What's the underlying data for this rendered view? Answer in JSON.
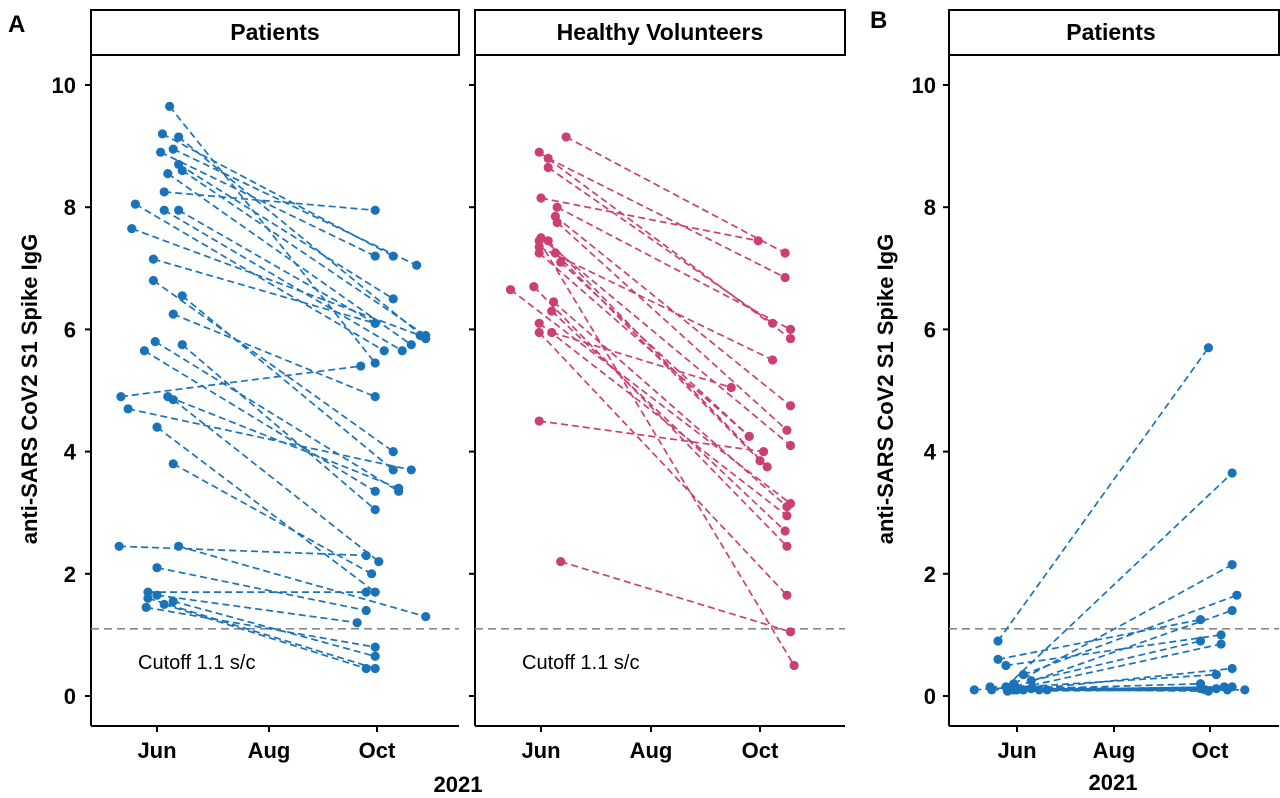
{
  "panels": {
    "A": "A",
    "B": "B"
  },
  "x_axis_title": "2021",
  "y_axis_title": "anti-SARS CoV2 S1 Spike IgG",
  "y_ticks": [
    "0",
    "2",
    "4",
    "6",
    "8",
    "10"
  ],
  "x_ticks": [
    "Jun",
    "Aug",
    "Oct"
  ],
  "cutoff_label": "Cutoff 1.1 s/c",
  "colors": {
    "patients": "#1a73b8",
    "healthy": "#cc3f73",
    "cutoff_line": "#888888"
  },
  "chart_data": [
    {
      "type": "line",
      "panel": "A",
      "facet": "Patients",
      "xlabel": "2021",
      "ylabel": "anti-SARS CoV2 S1 Spike IgG",
      "ylim": [
        0,
        10
      ],
      "x_ticks": [
        "Jun",
        "Aug",
        "Oct"
      ],
      "cutoff": 1.1,
      "cutoff_label": "Cutoff 1.1 s/c",
      "line_style": "dashed",
      "pairs": [
        {
          "x1": "2021-06-08",
          "y1": 9.65,
          "x2": "2021-09-30",
          "y2": 5.45
        },
        {
          "x1": "2021-06-04",
          "y1": 9.2,
          "x2": "2021-10-10",
          "y2": 7.2
        },
        {
          "x1": "2021-06-03",
          "y1": 8.9,
          "x2": "2021-09-30",
          "y2": 7.2
        },
        {
          "x1": "2021-06-13",
          "y1": 9.15,
          "x2": "2021-10-28",
          "y2": 5.85
        },
        {
          "x1": "2021-06-10",
          "y1": 8.95,
          "x2": "2021-10-23",
          "y2": 7.05
        },
        {
          "x1": "2021-06-05",
          "y1": 8.25,
          "x2": "2021-09-30",
          "y2": 7.95
        },
        {
          "x1": "2021-06-07",
          "y1": 8.55,
          "x2": "2021-10-20",
          "y2": 5.75
        },
        {
          "x1": "2021-06-13",
          "y1": 8.7,
          "x2": "2021-10-10",
          "y2": 6.5
        },
        {
          "x1": "2021-06-15",
          "y1": 8.6,
          "x2": "2021-10-28",
          "y2": 5.9
        },
        {
          "x1": "2021-06-05",
          "y1": 7.95,
          "x2": "2021-10-15",
          "y2": 5.65
        },
        {
          "x1": "2021-05-20",
          "y1": 8.05,
          "x2": "2021-10-05",
          "y2": 5.65
        },
        {
          "x1": "2021-05-18",
          "y1": 7.65,
          "x2": "2021-10-25",
          "y2": 5.9
        },
        {
          "x1": "2021-06-13",
          "y1": 7.95,
          "x2": "2021-09-30",
          "y2": 6.1
        },
        {
          "x1": "2021-05-30",
          "y1": 7.15,
          "x2": "2021-09-30",
          "y2": 6.1
        },
        {
          "x1": "2021-05-30",
          "y1": 6.8,
          "x2": "2021-10-10",
          "y2": 4.0
        },
        {
          "x1": "2021-06-15",
          "y1": 6.55,
          "x2": "2021-10-10",
          "y2": 3.7
        },
        {
          "x1": "2021-06-10",
          "y1": 6.25,
          "x2": "2021-09-30",
          "y2": 4.9
        },
        {
          "x1": "2021-06-15",
          "y1": 5.75,
          "x2": "2021-09-30",
          "y2": 3.05
        },
        {
          "x1": "2021-05-25",
          "y1": 5.65,
          "x2": "2021-09-30",
          "y2": 3.35
        },
        {
          "x1": "2021-05-31",
          "y1": 5.8,
          "x2": "2021-10-13",
          "y2": 3.35
        },
        {
          "x1": "2021-05-12",
          "y1": 4.9,
          "x2": "2021-09-22",
          "y2": 5.4
        },
        {
          "x1": "2021-05-16",
          "y1": 4.7,
          "x2": "2021-10-20",
          "y2": 3.7
        },
        {
          "x1": "2021-06-07",
          "y1": 4.9,
          "x2": "2021-10-13",
          "y2": 3.4
        },
        {
          "x1": "2021-06-10",
          "y1": 4.85,
          "x2": "2021-10-02",
          "y2": 2.2
        },
        {
          "x1": "2021-06-01",
          "y1": 4.4,
          "x2": "2021-09-30",
          "y2": 1.7
        },
        {
          "x1": "2021-06-10",
          "y1": 3.8,
          "x2": "2021-09-28",
          "y2": 2.0
        },
        {
          "x1": "2021-06-13",
          "y1": 2.45,
          "x2": "2021-10-28",
          "y2": 1.3
        },
        {
          "x1": "2021-05-11",
          "y1": 2.45,
          "x2": "2021-09-25",
          "y2": 2.3
        },
        {
          "x1": "2021-06-01",
          "y1": 2.1,
          "x2": "2021-09-25",
          "y2": 1.4
        },
        {
          "x1": "2021-05-27",
          "y1": 1.7,
          "x2": "2021-09-25",
          "y2": 1.7
        },
        {
          "x1": "2021-06-01",
          "y1": 1.65,
          "x2": "2021-09-20",
          "y2": 1.2
        },
        {
          "x1": "2021-05-26",
          "y1": 1.45,
          "x2": "2021-09-30",
          "y2": 0.8
        },
        {
          "x1": "2021-06-10",
          "y1": 1.55,
          "x2": "2021-09-30",
          "y2": 0.65
        },
        {
          "x1": "2021-06-05",
          "y1": 1.5,
          "x2": "2021-09-25",
          "y2": 0.45
        },
        {
          "x1": "2021-05-27",
          "y1": 1.6,
          "x2": "2021-09-30",
          "y2": 0.45
        }
      ]
    },
    {
      "type": "line",
      "panel": "A",
      "facet": "Healthy Volunteers",
      "xlabel": "2021",
      "ylabel": "",
      "ylim": [
        0,
        10
      ],
      "x_ticks": [
        "Jun",
        "Aug",
        "Oct"
      ],
      "cutoff": 1.1,
      "cutoff_label": "Cutoff 1.1 s/c",
      "line_style": "dashed",
      "pairs": [
        {
          "x1": "2021-05-31",
          "y1": 8.9,
          "x2": "2021-10-18",
          "y2": 5.85
        },
        {
          "x1": "2021-06-05",
          "y1": 8.8,
          "x2": "2021-10-15",
          "y2": 6.85
        },
        {
          "x1": "2021-06-05",
          "y1": 8.65,
          "x2": "2021-10-08",
          "y2": 6.1
        },
        {
          "x1": "2021-06-15",
          "y1": 9.15,
          "x2": "2021-10-15",
          "y2": 7.25
        },
        {
          "x1": "2021-06-01",
          "y1": 8.15,
          "x2": "2021-09-30",
          "y2": 7.45
        },
        {
          "x1": "2021-06-10",
          "y1": 8.0,
          "x2": "2021-10-18",
          "y2": 6.0
        },
        {
          "x1": "2021-06-09",
          "y1": 7.85,
          "x2": "2021-10-18",
          "y2": 4.75
        },
        {
          "x1": "2021-06-10",
          "y1": 7.75,
          "x2": "2021-10-16",
          "y2": 4.35
        },
        {
          "x1": "2021-06-01",
          "y1": 7.5,
          "x2": "2021-10-18",
          "y2": 4.1
        },
        {
          "x1": "2021-05-31",
          "y1": 7.35,
          "x2": "2021-10-08",
          "y2": 5.5
        },
        {
          "x1": "2021-06-05",
          "y1": 7.45,
          "x2": "2021-10-05",
          "y2": 3.75
        },
        {
          "x1": "2021-06-09",
          "y1": 7.25,
          "x2": "2021-10-01",
          "y2": 3.85
        },
        {
          "x1": "2021-06-12",
          "y1": 7.1,
          "x2": "2021-09-25",
          "y2": 4.25
        },
        {
          "x1": "2021-05-31",
          "y1": 7.25,
          "x2": "2021-09-25",
          "y2": 4.25
        },
        {
          "x1": "2021-05-28",
          "y1": 6.7,
          "x2": "2021-10-16",
          "y2": 2.45
        },
        {
          "x1": "2021-05-15",
          "y1": 6.65,
          "x2": "2021-10-18",
          "y2": 3.15
        },
        {
          "x1": "2021-06-08",
          "y1": 6.45,
          "x2": "2021-10-16",
          "y2": 3.1
        },
        {
          "x1": "2021-06-07",
          "y1": 6.3,
          "x2": "2021-10-15",
          "y2": 2.7
        },
        {
          "x1": "2021-05-31",
          "y1": 6.1,
          "x2": "2021-10-16",
          "y2": 2.95
        },
        {
          "x1": "2021-06-07",
          "y1": 5.95,
          "x2": "2021-09-15",
          "y2": 5.05
        },
        {
          "x1": "2021-05-31",
          "y1": 5.95,
          "x2": "2021-10-16",
          "y2": 1.65
        },
        {
          "x1": "2021-05-31",
          "y1": 4.5,
          "x2": "2021-10-03",
          "y2": 4.0
        },
        {
          "x1": "2021-06-12",
          "y1": 2.2,
          "x2": "2021-10-18",
          "y2": 1.05
        },
        {
          "x1": "2021-05-31",
          "y1": 7.45,
          "x2": "2021-10-20",
          "y2": 0.5
        }
      ]
    },
    {
      "type": "line",
      "panel": "B",
      "facet": "Patients",
      "xlabel": "2021",
      "ylabel": "anti-SARS CoV2 S1 Spike IgG",
      "ylim": [
        0,
        10
      ],
      "x_ticks": [
        "Jun",
        "Aug",
        "Oct"
      ],
      "cutoff": 1.1,
      "line_style": "dashed",
      "pairs": [
        {
          "x1": "2021-05-20",
          "y1": 0.9,
          "x2": "2021-09-30",
          "y2": 5.7
        },
        {
          "x1": "2021-05-25",
          "y1": 0.15,
          "x2": "2021-10-15",
          "y2": 3.65
        },
        {
          "x1": "2021-05-30",
          "y1": 0.2,
          "x2": "2021-10-15",
          "y2": 2.15
        },
        {
          "x1": "2021-06-05",
          "y1": 0.35,
          "x2": "2021-10-18",
          "y2": 1.65
        },
        {
          "x1": "2021-05-31",
          "y1": 0.15,
          "x2": "2021-10-15",
          "y2": 1.4
        },
        {
          "x1": "2021-05-20",
          "y1": 0.6,
          "x2": "2021-09-25",
          "y2": 1.25
        },
        {
          "x1": "2021-05-25",
          "y1": 0.5,
          "x2": "2021-10-08",
          "y2": 1.0
        },
        {
          "x1": "2021-06-10",
          "y1": 0.25,
          "x2": "2021-09-25",
          "y2": 0.9
        },
        {
          "x1": "2021-05-28",
          "y1": 0.1,
          "x2": "2021-10-08",
          "y2": 0.85
        },
        {
          "x1": "2021-06-05",
          "y1": 0.1,
          "x2": "2021-10-15",
          "y2": 0.45
        },
        {
          "x1": "2021-05-05",
          "y1": 0.1,
          "x2": "2021-10-05",
          "y2": 0.35
        },
        {
          "x1": "2021-05-16",
          "y1": 0.1,
          "x2": "2021-09-25",
          "y2": 0.2
        },
        {
          "x1": "2021-05-15",
          "y1": 0.15,
          "x2": "2021-10-23",
          "y2": 0.1
        },
        {
          "x1": "2021-06-01",
          "y1": 0.1,
          "x2": "2021-10-10",
          "y2": 0.15
        },
        {
          "x1": "2021-06-10",
          "y1": 0.12,
          "x2": "2021-09-28",
          "y2": 0.1
        },
        {
          "x1": "2021-05-26",
          "y1": 0.08,
          "x2": "2021-10-12",
          "y2": 0.1
        },
        {
          "x1": "2021-06-15",
          "y1": 0.1,
          "x2": "2021-10-05",
          "y2": 0.12
        },
        {
          "x1": "2021-06-20",
          "y1": 0.1,
          "x2": "2021-09-30",
          "y2": 0.08
        },
        {
          "x1": "2021-06-05",
          "y1": 0.1,
          "x2": "2021-10-15",
          "y2": 0.15
        },
        {
          "x1": "2021-05-30",
          "y1": 0.1,
          "x2": "2021-09-25",
          "y2": 0.12
        }
      ]
    }
  ]
}
